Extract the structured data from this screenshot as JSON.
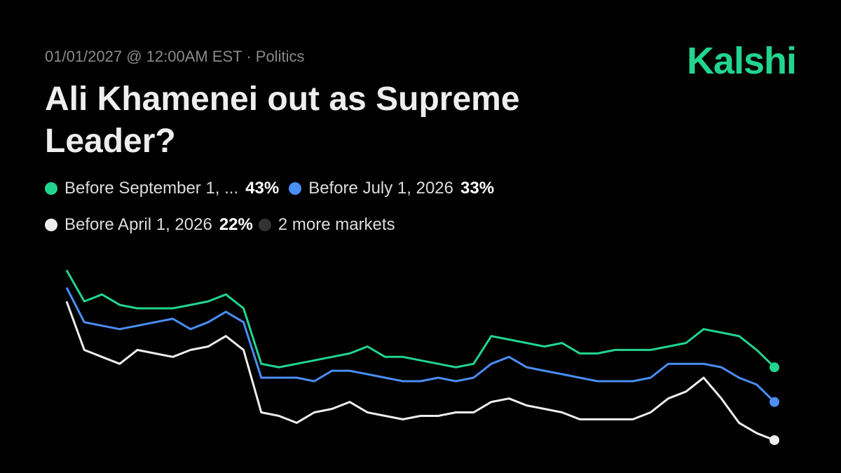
{
  "header": {
    "meta": "01/01/2027 @ 12:00AM EST · Politics",
    "brand": "Kalshi",
    "title": "Ali Khamenei out as Supreme Leader?"
  },
  "chart_data": {
    "type": "line",
    "ylim": [
      0,
      100
    ],
    "series": [
      {
        "name": "Before September 1, ...",
        "color": "#22d58f",
        "current": {
          "value": 43,
          "label": "43%"
        },
        "values": [
          71,
          62,
          64,
          61,
          60,
          60,
          60,
          61,
          62,
          64,
          60,
          44,
          43,
          44,
          45,
          46,
          47,
          49,
          46,
          46,
          45,
          44,
          43,
          44,
          52,
          51,
          50,
          49,
          50,
          47,
          47,
          48,
          48,
          48,
          49,
          50,
          54,
          53,
          52,
          48,
          43
        ]
      },
      {
        "name": "Before July 1, 2026",
        "color": "#4b8ef5",
        "current": {
          "value": 33,
          "label": "33%"
        },
        "values": [
          66,
          56,
          55,
          54,
          55,
          56,
          57,
          54,
          56,
          59,
          56,
          40,
          40,
          40,
          39,
          42,
          42,
          41,
          40,
          39,
          39,
          40,
          39,
          40,
          44,
          46,
          43,
          42,
          41,
          40,
          39,
          39,
          39,
          40,
          44,
          44,
          44,
          43,
          40,
          38,
          33
        ]
      },
      {
        "name": "Before April 1, 2026",
        "color": "#eeeeee",
        "current": {
          "value": 22,
          "label": "22%"
        },
        "values": [
          62,
          48,
          46,
          44,
          48,
          47,
          46,
          48,
          49,
          52,
          48,
          30,
          29,
          27,
          30,
          31,
          33,
          30,
          29,
          28,
          29,
          29,
          30,
          30,
          33,
          34,
          32,
          31,
          30,
          28,
          28,
          28,
          28,
          30,
          34,
          36,
          40,
          34,
          27,
          24,
          22
        ]
      }
    ],
    "more_markets": {
      "label": "2 more markets",
      "color": "#333333"
    }
  }
}
